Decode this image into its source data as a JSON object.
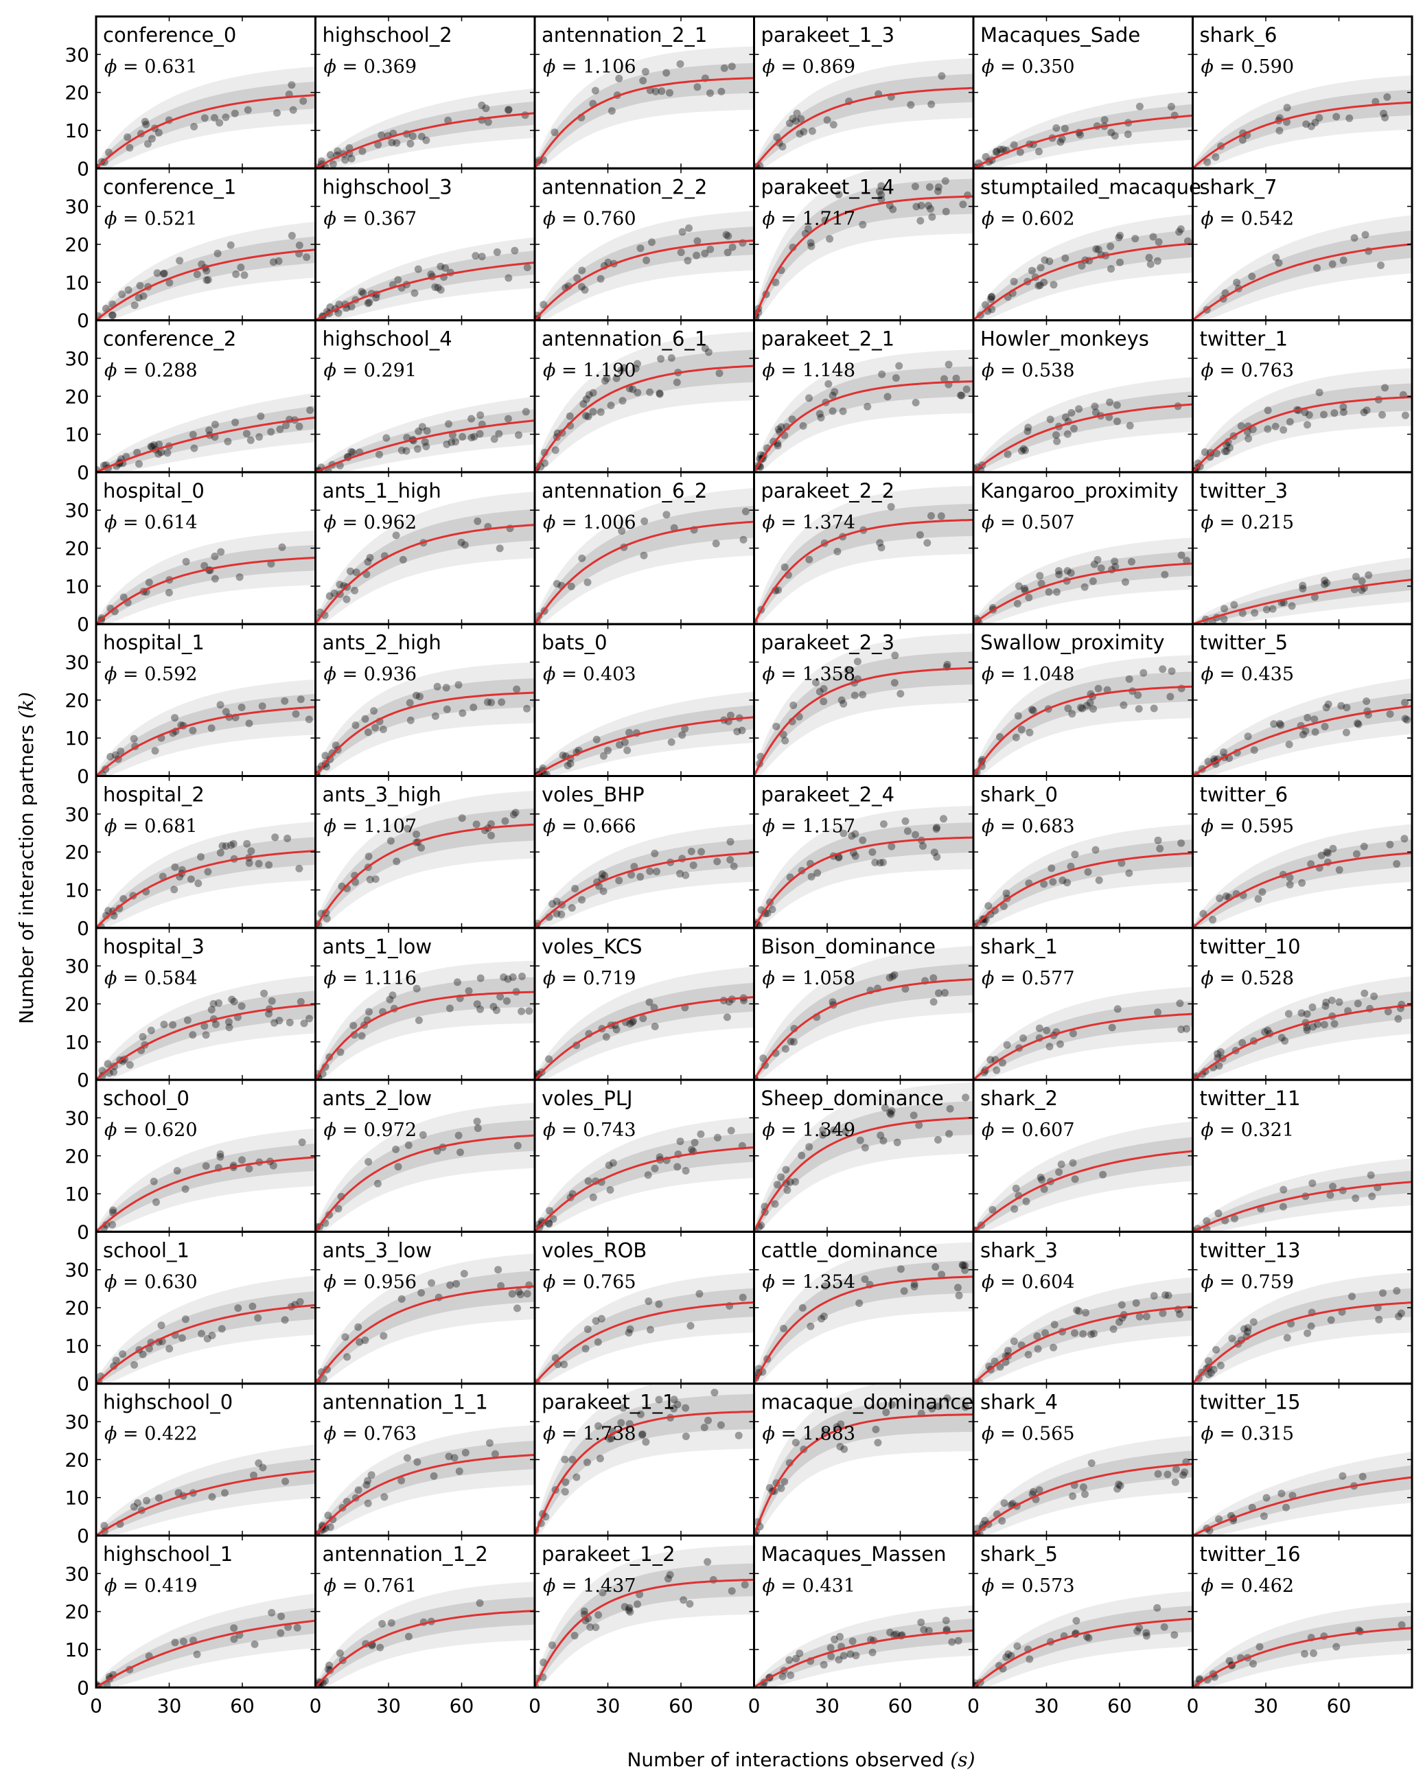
{
  "chart_data": {
    "type": "scatter",
    "layout": {
      "rows": 11,
      "cols": 6
    },
    "xlabel": "Number of interactions observed",
    "xlabel_symbol": "(s)",
    "ylabel": "Number of interaction partners",
    "ylabel_symbol": "(k)",
    "xlim": [
      0,
      90
    ],
    "ylim": [
      0,
      40
    ],
    "xticks": [
      0,
      30,
      60
    ],
    "yticks": [
      0,
      10,
      20,
      30
    ],
    "phi_prefix": "ϕ = ",
    "colors": {
      "points": "#000000",
      "fit": "#e03030",
      "band_inner": "#d0d0d0",
      "band_outer": "#ececec"
    },
    "panels": [
      {
        "name": "conference_0",
        "phi": "0.631"
      },
      {
        "name": "highschool_2",
        "phi": "0.369"
      },
      {
        "name": "antennation_2_1",
        "phi": "1.106"
      },
      {
        "name": "parakeet_1_3",
        "phi": "0.869"
      },
      {
        "name": "Macaques_Sade",
        "phi": "0.350"
      },
      {
        "name": "shark_6",
        "phi": "0.590"
      },
      {
        "name": "conference_1",
        "phi": "0.521"
      },
      {
        "name": "highschool_3",
        "phi": "0.367"
      },
      {
        "name": "antennation_2_2",
        "phi": "0.760"
      },
      {
        "name": "parakeet_1_4",
        "phi": "1.717"
      },
      {
        "name": "stumptailed_macaque",
        "phi": "0.602"
      },
      {
        "name": "shark_7",
        "phi": "0.542"
      },
      {
        "name": "conference_2",
        "phi": "0.288"
      },
      {
        "name": "highschool_4",
        "phi": "0.291"
      },
      {
        "name": "antennation_6_1",
        "phi": "1.190"
      },
      {
        "name": "parakeet_2_1",
        "phi": "1.148"
      },
      {
        "name": "Howler_monkeys",
        "phi": "0.538"
      },
      {
        "name": "twitter_1",
        "phi": "0.763"
      },
      {
        "name": "hospital_0",
        "phi": "0.614"
      },
      {
        "name": "ants_1_high",
        "phi": "0.962"
      },
      {
        "name": "antennation_6_2",
        "phi": "1.006"
      },
      {
        "name": "parakeet_2_2",
        "phi": "1.374"
      },
      {
        "name": "Kangaroo_proximity",
        "phi": "0.507"
      },
      {
        "name": "twitter_3",
        "phi": "0.215"
      },
      {
        "name": "hospital_1",
        "phi": "0.592"
      },
      {
        "name": "ants_2_high",
        "phi": "0.936"
      },
      {
        "name": "bats_0",
        "phi": "0.403"
      },
      {
        "name": "parakeet_2_3",
        "phi": "1.358"
      },
      {
        "name": "Swallow_proximity",
        "phi": "1.048"
      },
      {
        "name": "twitter_5",
        "phi": "0.435"
      },
      {
        "name": "hospital_2",
        "phi": "0.681"
      },
      {
        "name": "ants_3_high",
        "phi": "1.107"
      },
      {
        "name": "voles_BHP",
        "phi": "0.666"
      },
      {
        "name": "parakeet_2_4",
        "phi": "1.157"
      },
      {
        "name": "shark_0",
        "phi": "0.683"
      },
      {
        "name": "twitter_6",
        "phi": "0.595"
      },
      {
        "name": "hospital_3",
        "phi": "0.584"
      },
      {
        "name": "ants_1_low",
        "phi": "1.116"
      },
      {
        "name": "voles_KCS",
        "phi": "0.719"
      },
      {
        "name": "Bison_dominance",
        "phi": "1.058"
      },
      {
        "name": "shark_1",
        "phi": "0.577"
      },
      {
        "name": "twitter_10",
        "phi": "0.528"
      },
      {
        "name": "school_0",
        "phi": "0.620"
      },
      {
        "name": "ants_2_low",
        "phi": "0.972"
      },
      {
        "name": "voles_PLJ",
        "phi": "0.743"
      },
      {
        "name": "Sheep_dominance",
        "phi": "1.349"
      },
      {
        "name": "shark_2",
        "phi": "0.607"
      },
      {
        "name": "twitter_11",
        "phi": "0.321"
      },
      {
        "name": "school_1",
        "phi": "0.630"
      },
      {
        "name": "ants_3_low",
        "phi": "0.956"
      },
      {
        "name": "voles_ROB",
        "phi": "0.765"
      },
      {
        "name": "cattle_dominance",
        "phi": "1.354"
      },
      {
        "name": "shark_3",
        "phi": "0.604"
      },
      {
        "name": "twitter_13",
        "phi": "0.759"
      },
      {
        "name": "highschool_0",
        "phi": "0.422"
      },
      {
        "name": "antennation_1_1",
        "phi": "0.763"
      },
      {
        "name": "parakeet_1_1",
        "phi": "1.738"
      },
      {
        "name": "macaque_dominance",
        "phi": "1.883"
      },
      {
        "name": "shark_4",
        "phi": "0.565"
      },
      {
        "name": "twitter_15",
        "phi": "0.315"
      },
      {
        "name": "highschool_1",
        "phi": "0.419"
      },
      {
        "name": "antennation_1_2",
        "phi": "0.761"
      },
      {
        "name": "parakeet_1_2",
        "phi": "1.437"
      },
      {
        "name": "Macaques_Massen",
        "phi": "0.431"
      },
      {
        "name": "shark_5",
        "phi": "0.573"
      },
      {
        "name": "twitter_16",
        "phi": "0.462"
      }
    ]
  }
}
